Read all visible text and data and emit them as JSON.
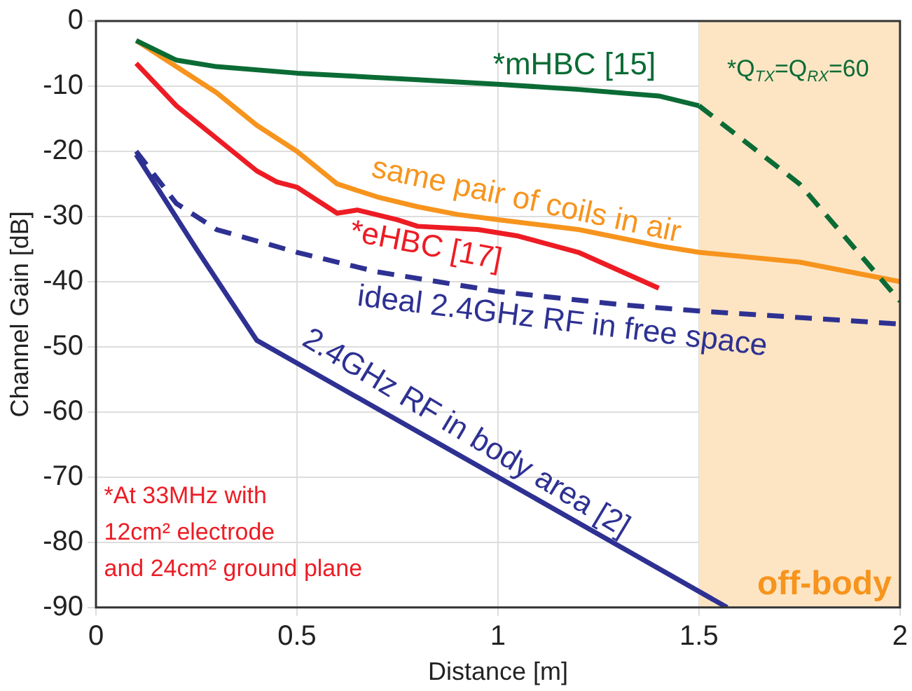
{
  "chart_data": {
    "type": "line",
    "xlabel": "Distance [m]",
    "ylabel": "Channel Gain [dB]",
    "xlim": [
      0,
      2
    ],
    "xticks": [
      0,
      0.5,
      1,
      1.5,
      2
    ],
    "ylim": [
      -90,
      0
    ],
    "yticks": [
      0,
      -10,
      -20,
      -30,
      -40,
      -50,
      -60,
      -70,
      -80,
      -90
    ],
    "grid": true,
    "legend": false,
    "marker": "none",
    "series": [
      {
        "name": "*mHBC [15]",
        "color": "#0b6b35",
        "line_style": "solid",
        "x": [
          0.1,
          0.2,
          0.3,
          0.5,
          0.8,
          1,
          1.2,
          1.4,
          1.5
        ],
        "values": [
          -3,
          -6,
          -7,
          -8,
          -9,
          -9.7,
          -10.5,
          -11.5,
          -13
        ]
      },
      {
        "color": "#0b6b35",
        "line_style": "dashed",
        "x": [
          1.5,
          1.75,
          2
        ],
        "values": [
          -13,
          -25,
          -43
        ]
      },
      {
        "name": "same pair of coils in air",
        "color": "#f7941d",
        "line_style": "solid",
        "x": [
          0.1,
          0.2,
          0.3,
          0.4,
          0.5,
          0.6,
          0.7,
          0.8,
          0.9,
          1,
          1.2,
          1.4,
          1.5,
          1.75,
          2
        ],
        "values": [
          -3,
          -7,
          -11,
          -16,
          -20,
          -25,
          -27,
          -28.5,
          -29.7,
          -30.5,
          -32,
          -34.5,
          -35.5,
          -37,
          -40
        ]
      },
      {
        "name": "*eHBC [17]",
        "color": "#ed1c24",
        "line_style": "solid",
        "x": [
          0.1,
          0.2,
          0.3,
          0.4,
          0.45,
          0.5,
          0.55,
          0.6,
          0.65,
          0.75,
          0.8,
          0.95,
          1.05,
          1.2,
          1.4
        ],
        "values": [
          -6.5,
          -13,
          -18,
          -23,
          -24.7,
          -25.5,
          -27.5,
          -29.5,
          -29,
          -30.5,
          -31.5,
          -32,
          -33,
          -35.5,
          -41
        ]
      },
      {
        "name": "ideal 2.4GHz RF in free space",
        "color": "#2e3192",
        "line_style": "dashed",
        "x": [
          0.1,
          0.2,
          0.3,
          0.5,
          0.7,
          1,
          1.3,
          1.5,
          2
        ],
        "values": [
          -20,
          -28,
          -32,
          -35.5,
          -38.5,
          -41.5,
          -43.5,
          -44.5,
          -46.5
        ]
      },
      {
        "name": "2.4GHz RF in body area [2]",
        "color": "#2e3192",
        "line_style": "solid",
        "x": [
          0.1,
          0.25,
          0.4,
          1,
          1.57
        ],
        "values": [
          -20.5,
          -35,
          -49,
          -70,
          -90
        ]
      }
    ],
    "bands": [
      {
        "axis": "x",
        "from": 1.5,
        "to": 2,
        "label": "off-body",
        "color": "#fde5c4"
      }
    ],
    "annotations": [
      "*Q$_{TX}$=Q$_{RX}$=60",
      "*At 33MHz with\n12cm² electrode\nand 24cm² ground plane"
    ]
  }
}
